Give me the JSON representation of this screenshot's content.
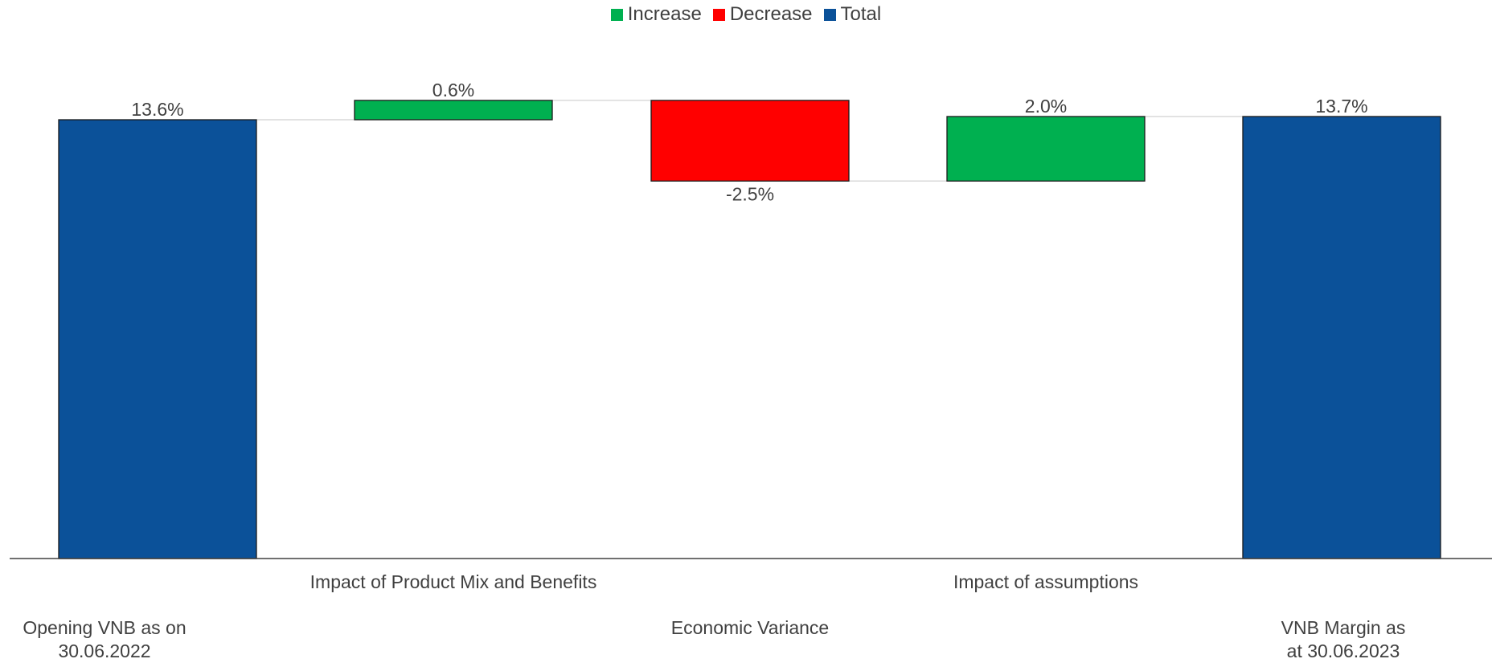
{
  "legend": [
    {
      "label": "Increase",
      "color": "#00B050"
    },
    {
      "label": "Decrease",
      "color": "#FF0000"
    },
    {
      "label": "Total",
      "color": "#0B5199"
    }
  ],
  "chart_data": {
    "type": "bar",
    "subtype": "waterfall",
    "title": "",
    "xlabel": "",
    "ylabel": "",
    "ylim": [
      0,
      15.7
    ],
    "grid": false,
    "legend_position": "top-center",
    "categories": [
      "Opening VNB  as on 30.06.2022",
      "Impact of Product Mix and Benefits",
      "Economic Variance",
      "Impact of assumptions",
      "VNB Margin as at 30.06.2023"
    ],
    "values": [
      13.6,
      0.6,
      -2.5,
      2.0,
      13.7
    ],
    "kinds": [
      "total",
      "increase",
      "decrease",
      "increase",
      "total"
    ],
    "data_labels": [
      "13.6%",
      "0.6%",
      "-2.5%",
      "2.0%",
      "13.7%"
    ],
    "colors": {
      "increase": "#00B050",
      "decrease": "#FF0000",
      "total": "#0B5199"
    }
  }
}
